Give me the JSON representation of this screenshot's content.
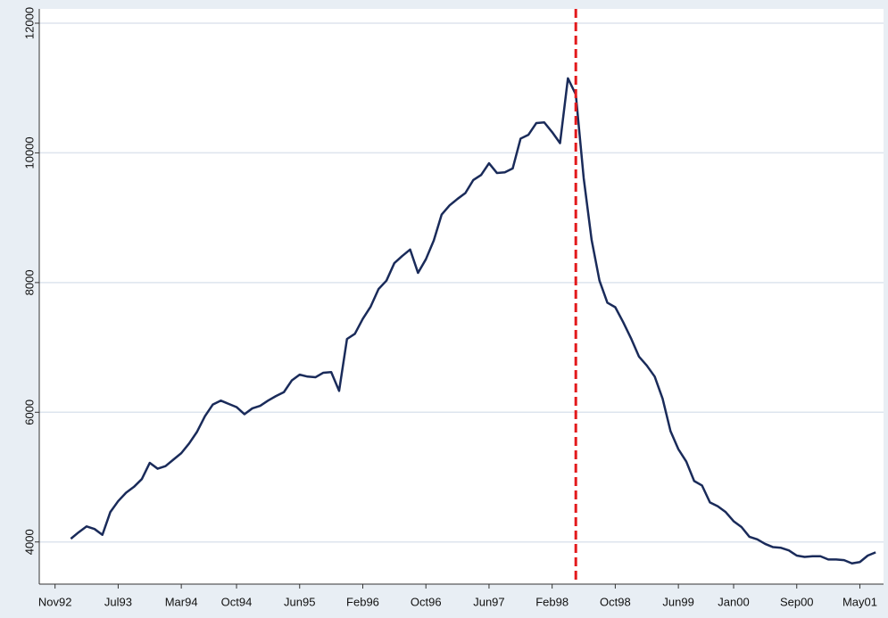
{
  "chart_data": {
    "type": "line",
    "x": [
      "1993-01",
      "1993-02",
      "1993-03",
      "1993-04",
      "1993-05",
      "1993-06",
      "1993-07",
      "1993-08",
      "1993-09",
      "1993-10",
      "1993-11",
      "1993-12",
      "1994-01",
      "1994-02",
      "1994-03",
      "1994-04",
      "1994-05",
      "1994-06",
      "1994-07",
      "1994-08",
      "1994-09",
      "1994-10",
      "1994-11",
      "1994-12",
      "1995-01",
      "1995-02",
      "1995-03",
      "1995-04",
      "1995-05",
      "1995-06",
      "1995-07",
      "1995-08",
      "1995-09",
      "1995-10",
      "1995-11",
      "1995-12",
      "1996-01",
      "1996-02",
      "1996-03",
      "1996-04",
      "1996-05",
      "1996-06",
      "1996-07",
      "1996-08",
      "1996-09",
      "1996-10",
      "1996-11",
      "1996-12",
      "1997-01",
      "1997-02",
      "1997-03",
      "1997-04",
      "1997-05",
      "1997-06",
      "1997-07",
      "1997-08",
      "1997-09",
      "1997-10",
      "1997-11",
      "1997-12",
      "1998-01",
      "1998-02",
      "1998-03",
      "1998-04",
      "1998-05",
      "1998-06",
      "1998-07",
      "1998-08",
      "1998-09",
      "1998-10",
      "1998-11",
      "1998-12",
      "1999-01",
      "1999-02",
      "1999-03",
      "1999-04",
      "1999-05",
      "1999-06",
      "1999-07",
      "1999-08",
      "1999-09",
      "1999-10",
      "1999-11",
      "1999-12",
      "2000-01",
      "2000-02",
      "2000-03",
      "2000-04",
      "2000-05",
      "2000-06",
      "2000-07",
      "2000-08",
      "2000-09",
      "2000-10",
      "2000-11",
      "2000-12",
      "2001-01",
      "2001-02",
      "2001-03",
      "2001-04",
      "2001-05",
      "2001-06",
      "2001-07"
    ],
    "series": [
      {
        "color": "#1a2b5a",
        "values": [
          4050,
          4150,
          4240,
          4200,
          4110,
          4460,
          4630,
          4760,
          4850,
          4970,
          5220,
          5130,
          5170,
          5270,
          5370,
          5520,
          5700,
          5940,
          6120,
          6180,
          6130,
          6080,
          5970,
          6060,
          6100,
          6180,
          6250,
          6310,
          6490,
          6580,
          6550,
          6540,
          6610,
          6620,
          6330,
          7130,
          7210,
          7440,
          7630,
          7900,
          8030,
          8300,
          8410,
          8510,
          8150,
          8360,
          8650,
          9050,
          9190,
          9290,
          9380,
          9580,
          9660,
          9840,
          9690,
          9700,
          9760,
          10220,
          10280,
          10460,
          10470,
          10320,
          10150,
          11150,
          10900,
          9610,
          8660,
          8030,
          7690,
          7620,
          7390,
          7140,
          6860,
          6720,
          6550,
          6210,
          5710,
          5430,
          5240,
          4940,
          4870,
          4610,
          4550,
          4460,
          4320,
          4230,
          4080,
          4040,
          3970,
          3920,
          3910,
          3870,
          3790,
          3770,
          3780,
          3780,
          3730,
          3730,
          3720,
          3670,
          3690,
          3790,
          3840
        ]
      }
    ],
    "xlim": [
      "1992-09",
      "2001-08"
    ],
    "xticks": [
      {
        "value": "1992-11",
        "label": "Nov92"
      },
      {
        "value": "1993-07",
        "label": "Jul93"
      },
      {
        "value": "1994-03",
        "label": "Mar94"
      },
      {
        "value": "1994-10",
        "label": "Oct94"
      },
      {
        "value": "1995-06",
        "label": "Jun95"
      },
      {
        "value": "1996-02",
        "label": "Feb96"
      },
      {
        "value": "1996-10",
        "label": "Oct96"
      },
      {
        "value": "1997-06",
        "label": "Jun97"
      },
      {
        "value": "1998-02",
        "label": "Feb98"
      },
      {
        "value": "1998-10",
        "label": "Oct98"
      },
      {
        "value": "1999-06",
        "label": "Jun99"
      },
      {
        "value": "2000-01",
        "label": "Jan00"
      },
      {
        "value": "2000-09",
        "label": "Sep00"
      },
      {
        "value": "2001-05",
        "label": "May01"
      }
    ],
    "ylim": [
      3350,
      12220
    ],
    "yticks": [
      4000,
      6000,
      8000,
      10000,
      12000
    ],
    "grid": true,
    "vline": {
      "x": "1998-05",
      "color": "#e31a1c"
    }
  }
}
